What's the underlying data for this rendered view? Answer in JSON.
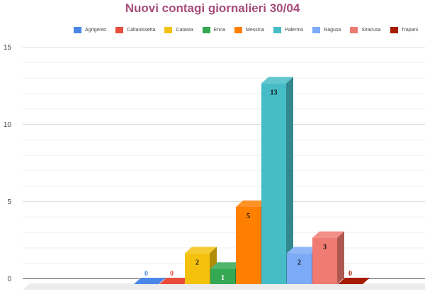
{
  "title": "Nuovi contagi giornalieri 30/04",
  "colors": {
    "title": "#a64d79",
    "grid": "#e5e5e5",
    "floor": "#ececec",
    "tick_label": "#444444"
  },
  "chart_data": {
    "type": "bar",
    "title": "Nuovi contagi giornalieri 30/04",
    "xlabel": "",
    "ylabel": "",
    "ylim": [
      0,
      15
    ],
    "yticks": [
      0,
      5,
      10,
      15
    ],
    "grid": true,
    "legend_position": "top-right",
    "three_d": true,
    "series": [
      {
        "name": "Agrigento",
        "value": 0,
        "color": "#4a86e8",
        "label_color": "#4a86e8"
      },
      {
        "name": "Caltanissetta",
        "value": 0,
        "color": "#e84d3c",
        "label_color": "#e84d3c"
      },
      {
        "name": "Catania",
        "value": 2,
        "color": "#f4c20d",
        "label_color": "#111111"
      },
      {
        "name": "Enna",
        "value": 1,
        "color": "#34a853",
        "label_color": "#ffffff"
      },
      {
        "name": "Messina",
        "value": 5,
        "color": "#ff7f00",
        "label_color": "#111111"
      },
      {
        "name": "Palermo",
        "value": 13,
        "color": "#46bdc6",
        "label_color": "#111111"
      },
      {
        "name": "Ragusa",
        "value": 2,
        "color": "#7baaf7",
        "label_color": "#111111"
      },
      {
        "name": "Siracusa",
        "value": 3,
        "color": "#f07b72",
        "label_color": "#111111"
      },
      {
        "name": "Trapani",
        "value": 0,
        "color": "#a61c00",
        "label_color": "#a61c00"
      }
    ]
  }
}
